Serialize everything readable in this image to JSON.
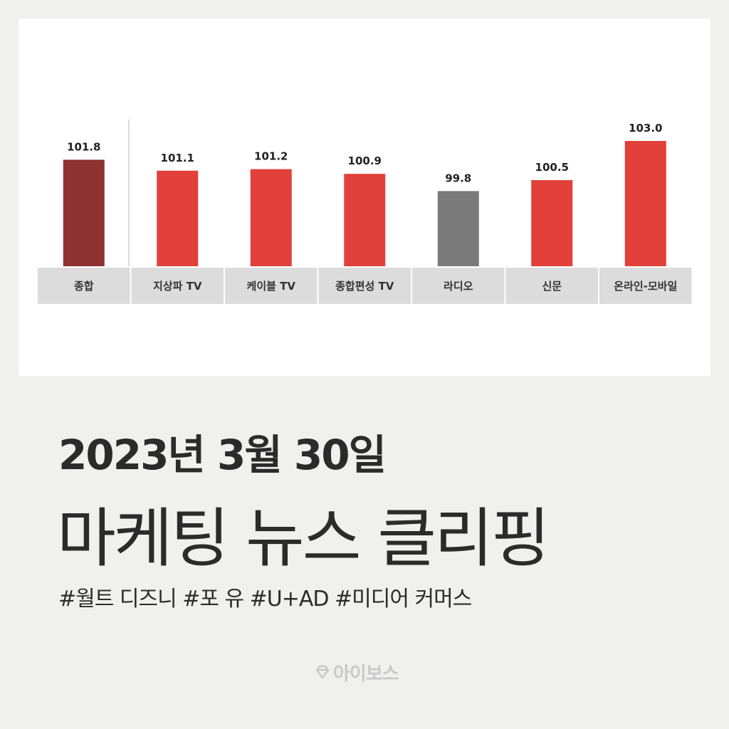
{
  "chart_data": {
    "type": "bar",
    "categories": [
      "종합",
      "지상파 TV",
      "케이블 TV",
      "종합편성 TV",
      "라디오",
      "신문",
      "온라인-모바일"
    ],
    "values": [
      101.8,
      101.1,
      101.2,
      100.9,
      99.8,
      100.5,
      103.0
    ],
    "value_labels": [
      "101.8",
      "101.1",
      "101.2",
      "100.9",
      "99.8",
      "100.5",
      "103.0"
    ],
    "bar_colors": [
      "#8e3232",
      "#e2403a",
      "#e2403a",
      "#e2403a",
      "#7a7a7a",
      "#e2403a",
      "#e2403a"
    ],
    "title": "",
    "xlabel": "",
    "ylabel": "",
    "grid": false
  },
  "headline": "2023년 3월 30일",
  "subtitle": "마케팅 뉴스 클리핑",
  "tags": "#월트 디즈니 #포 유 #U+AD #미디어 커머스",
  "logo": {
    "text": "아이보스",
    "icon": "diamond-logo-icon",
    "color": "#c9c9c9"
  },
  "colors": {
    "background": "#f0f0ef",
    "card": "#ffffff",
    "text": "#2b2b2b",
    "category_bar": "#dcdcdc"
  }
}
